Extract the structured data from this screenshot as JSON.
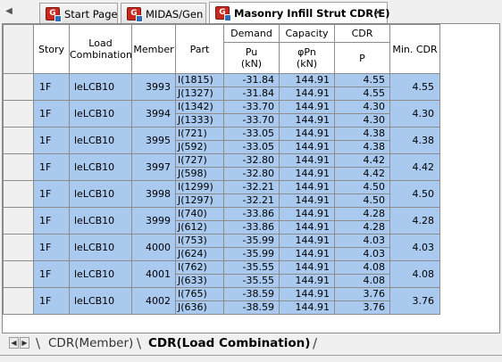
{
  "tabs": [
    {
      "label": "Start Page",
      "active": false
    },
    {
      "label": "MIDAS/Gen",
      "active": false
    },
    {
      "label": "Masonry Infill Strut CDR(E)",
      "active": true
    }
  ],
  "icons": {
    "tab_scroll": "triangle-left-icon",
    "close": "close-icon",
    "app": "midas-app-icon"
  },
  "headers": {
    "story": "Story",
    "load_combination": "Load Combination",
    "member": "Member",
    "part": "Part",
    "demand": "Demand",
    "capacity": "Capacity",
    "cdr": "CDR",
    "min_cdr": "Min. CDR",
    "pu": "Pu",
    "pu_unit": "(kN)",
    "phipn": "φPn",
    "phipn_unit": "(kN)",
    "p": "P"
  },
  "rows": [
    {
      "story": "1F",
      "lc": "leLCB10",
      "member": "3993",
      "min_cdr": "4.55",
      "parts": [
        {
          "part": "I(1815)",
          "pu": "-31.84",
          "phipn": "144.91",
          "cdr": "4.55"
        },
        {
          "part": "J(1327)",
          "pu": "-31.84",
          "phipn": "144.91",
          "cdr": "4.55"
        }
      ]
    },
    {
      "story": "1F",
      "lc": "leLCB10",
      "member": "3994",
      "min_cdr": "4.30",
      "parts": [
        {
          "part": "I(1342)",
          "pu": "-33.70",
          "phipn": "144.91",
          "cdr": "4.30"
        },
        {
          "part": "J(1333)",
          "pu": "-33.70",
          "phipn": "144.91",
          "cdr": "4.30"
        }
      ]
    },
    {
      "story": "1F",
      "lc": "leLCB10",
      "member": "3995",
      "min_cdr": "4.38",
      "parts": [
        {
          "part": "I(721)",
          "pu": "-33.05",
          "phipn": "144.91",
          "cdr": "4.38"
        },
        {
          "part": "J(592)",
          "pu": "-33.05",
          "phipn": "144.91",
          "cdr": "4.38"
        }
      ]
    },
    {
      "story": "1F",
      "lc": "leLCB10",
      "member": "3997",
      "min_cdr": "4.42",
      "parts": [
        {
          "part": "I(727)",
          "pu": "-32.80",
          "phipn": "144.91",
          "cdr": "4.42"
        },
        {
          "part": "J(598)",
          "pu": "-32.80",
          "phipn": "144.91",
          "cdr": "4.42"
        }
      ]
    },
    {
      "story": "1F",
      "lc": "leLCB10",
      "member": "3998",
      "min_cdr": "4.50",
      "parts": [
        {
          "part": "I(1299)",
          "pu": "-32.21",
          "phipn": "144.91",
          "cdr": "4.50"
        },
        {
          "part": "J(1297)",
          "pu": "-32.21",
          "phipn": "144.91",
          "cdr": "4.50"
        }
      ]
    },
    {
      "story": "1F",
      "lc": "leLCB10",
      "member": "3999",
      "min_cdr": "4.28",
      "parts": [
        {
          "part": "I(740)",
          "pu": "-33.86",
          "phipn": "144.91",
          "cdr": "4.28"
        },
        {
          "part": "J(612)",
          "pu": "-33.86",
          "phipn": "144.91",
          "cdr": "4.28"
        }
      ]
    },
    {
      "story": "1F",
      "lc": "leLCB10",
      "member": "4000",
      "min_cdr": "4.03",
      "parts": [
        {
          "part": "I(753)",
          "pu": "-35.99",
          "phipn": "144.91",
          "cdr": "4.03"
        },
        {
          "part": "J(624)",
          "pu": "-35.99",
          "phipn": "144.91",
          "cdr": "4.03"
        }
      ]
    },
    {
      "story": "1F",
      "lc": "leLCB10",
      "member": "4001",
      "min_cdr": "4.08",
      "parts": [
        {
          "part": "I(762)",
          "pu": "-35.55",
          "phipn": "144.91",
          "cdr": "4.08"
        },
        {
          "part": "J(633)",
          "pu": "-35.55",
          "phipn": "144.91",
          "cdr": "4.08"
        }
      ]
    },
    {
      "story": "1F",
      "lc": "leLCB10",
      "member": "4002",
      "min_cdr": "3.76",
      "parts": [
        {
          "part": "I(765)",
          "pu": "-38.59",
          "phipn": "144.91",
          "cdr": "3.76"
        },
        {
          "part": "J(636)",
          "pu": "-38.59",
          "phipn": "144.91",
          "cdr": "3.76"
        }
      ]
    }
  ],
  "sheet_tabs": [
    {
      "label": "CDR(Member)",
      "active": false
    },
    {
      "label": "CDR(Load Combination)",
      "active": true
    }
  ],
  "colors": {
    "selection": "#a9c9ef",
    "header_bg": "#ffffff",
    "chrome": "#f0f0f0",
    "tab_icon": "#c8281e"
  }
}
